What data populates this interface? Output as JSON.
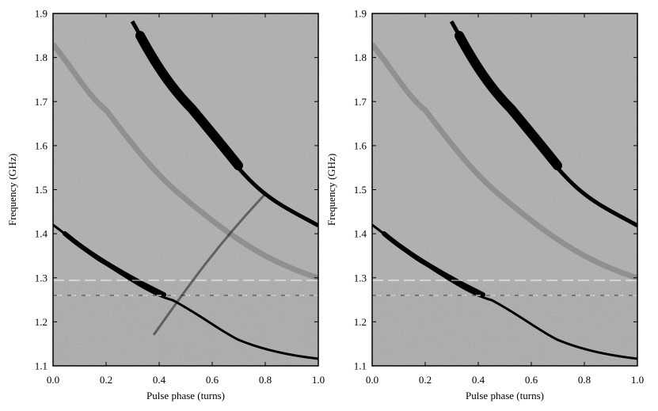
{
  "chart_data": [
    {
      "type": "heatmap",
      "xlabel": "Pulse phase (turns)",
      "ylabel": "Frequency (GHz)",
      "xlim": [
        0,
        1
      ],
      "ylim": [
        1.1,
        1.9
      ],
      "xticks": [
        {
          "value": 0,
          "label": "0.0"
        },
        0.2,
        0.4,
        0.6,
        0.8,
        {
          "value": 1,
          "label": "1.0"
        }
      ],
      "yticks": [
        1.1,
        1.2,
        1.3,
        1.4,
        1.5,
        1.6,
        1.7,
        1.8,
        1.9
      ]
    },
    {
      "type": "heatmap",
      "xlabel": "Pulse phase (turns)",
      "ylabel": "Frequency (GHz)",
      "xlim": [
        0,
        1
      ],
      "ylim": [
        1.1,
        1.9
      ],
      "xticks": [
        {
          "value": 0,
          "label": "0.0"
        },
        0.2,
        0.4,
        0.6,
        0.8,
        {
          "value": 1,
          "label": "1.0"
        }
      ],
      "yticks": [
        1.1,
        1.2,
        1.3,
        1.4,
        1.5,
        1.6,
        1.7,
        1.8,
        1.9
      ]
    }
  ]
}
